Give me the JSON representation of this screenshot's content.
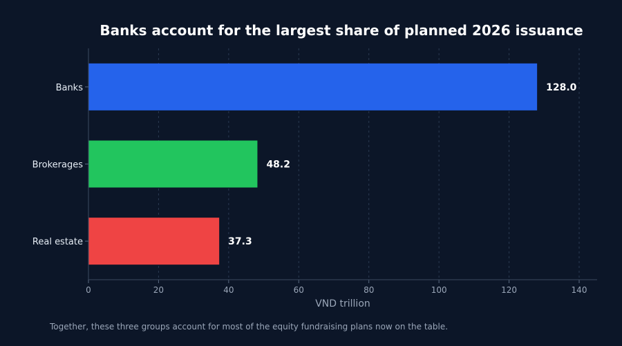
{
  "chart_data": {
    "type": "bar",
    "orientation": "horizontal",
    "title": "Banks account for the largest share of planned 2026 issuance",
    "xlabel": "VND trillion",
    "ylabel": "",
    "categories": [
      "Banks",
      "Brokerages",
      "Real estate"
    ],
    "values": [
      128.0,
      48.2,
      37.3
    ],
    "value_labels": [
      "128.0",
      "48.2",
      "37.3"
    ],
    "colors": [
      "#2563eb",
      "#22c55e",
      "#ef4444"
    ],
    "xlim": [
      0,
      145
    ],
    "xticks": [
      0,
      20,
      40,
      60,
      80,
      100,
      120,
      140
    ],
    "grid": "vertical-dashed",
    "legend": "none"
  },
  "footnote": "Together, these three groups account for most of the equity fundraising plans now on the table."
}
